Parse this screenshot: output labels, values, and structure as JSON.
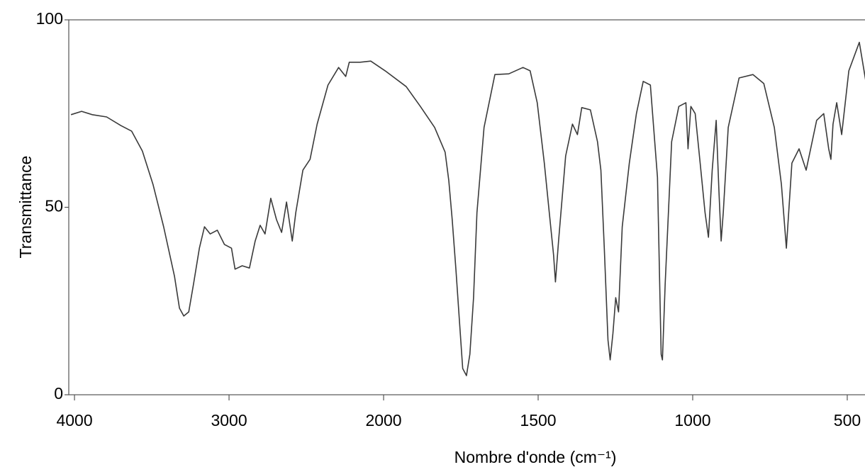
{
  "chart_data": {
    "type": "line",
    "xlabel": "Nombre d'onde (cm⁻¹)",
    "ylabel": "Transmittance",
    "color": "#3a3a3a",
    "x_scale_break": 2000,
    "x_scale_ratio": 2,
    "xlim": [
      4037,
      438
    ],
    "xticks": [
      4000,
      3000,
      2000,
      1500,
      1000,
      500
    ],
    "ylim": [
      0,
      100
    ],
    "yticks": [
      0,
      50,
      100
    ],
    "x": [
      4023,
      3954,
      3885,
      3792,
      3700,
      3630,
      3561,
      3492,
      3423,
      3353,
      3321,
      3293,
      3261,
      3229,
      3192,
      3159,
      3122,
      3076,
      3030,
      2984,
      2961,
      2915,
      2868,
      2831,
      2799,
      2767,
      2730,
      2693,
      2660,
      2628,
      2591,
      2568,
      2522,
      2476,
      2430,
      2360,
      2291,
      2245,
      2222,
      2152,
      2083,
      1995,
      1927,
      1881,
      1835,
      1801,
      1789,
      1778,
      1766,
      1755,
      1744,
      1732,
      1721,
      1709,
      1698,
      1675,
      1640,
      1595,
      1549,
      1526,
      1503,
      1480,
      1464,
      1450,
      1444,
      1434,
      1411,
      1389,
      1373,
      1359,
      1331,
      1308,
      1297,
      1286,
      1274,
      1267,
      1258,
      1249,
      1240,
      1228,
      1205,
      1182,
      1160,
      1137,
      1114,
      1102,
      1098,
      1089,
      1068,
      1045,
      1022,
      1015,
      1006,
      992,
      976,
      960,
      949,
      937,
      924,
      915,
      908,
      901,
      885,
      850,
      805,
      770,
      736,
      713,
      697,
      679,
      656,
      633,
      599,
      576,
      560,
      553,
      546,
      534,
      518,
      495,
      461,
      438
    ],
    "values": [
      74.7,
      75.6,
      74.7,
      74.1,
      71.8,
      70.3,
      65.0,
      56.1,
      44.8,
      31.6,
      23.1,
      21.0,
      22.1,
      29.7,
      39.1,
      44.8,
      42.9,
      43.9,
      40.1,
      39.1,
      33.5,
      34.4,
      33.8,
      41.0,
      45.2,
      42.9,
      52.4,
      46.7,
      43.3,
      51.4,
      41.0,
      48.6,
      59.9,
      62.8,
      72.2,
      82.6,
      87.3,
      84.9,
      88.7,
      88.7,
      89.0,
      86.4,
      82.2,
      76.9,
      71.3,
      64.7,
      57.1,
      46.7,
      33.5,
      20.2,
      7.0,
      5.1,
      10.8,
      25.9,
      48.6,
      71.3,
      85.4,
      85.6,
      87.3,
      86.4,
      77.9,
      61.8,
      48.6,
      37.2,
      30.1,
      41.0,
      63.7,
      72.2,
      69.4,
      76.6,
      76.0,
      67.5,
      59.9,
      39.1,
      14.6,
      9.3,
      16.4,
      25.9,
      22.1,
      44.8,
      61.8,
      75.0,
      83.6,
      82.6,
      58.0,
      10.8,
      9.3,
      29.7,
      67.5,
      76.9,
      77.9,
      65.6,
      76.9,
      75.0,
      61.8,
      48.6,
      42.0,
      59.9,
      73.2,
      54.3,
      41.0,
      48.6,
      71.3,
      84.5,
      85.4,
      83.0,
      71.3,
      56.1,
      39.1,
      61.8,
      65.6,
      59.9,
      73.2,
      75.0,
      65.6,
      62.8,
      72.2,
      77.9,
      69.4,
      86.4,
      94.0,
      82.6
    ]
  }
}
